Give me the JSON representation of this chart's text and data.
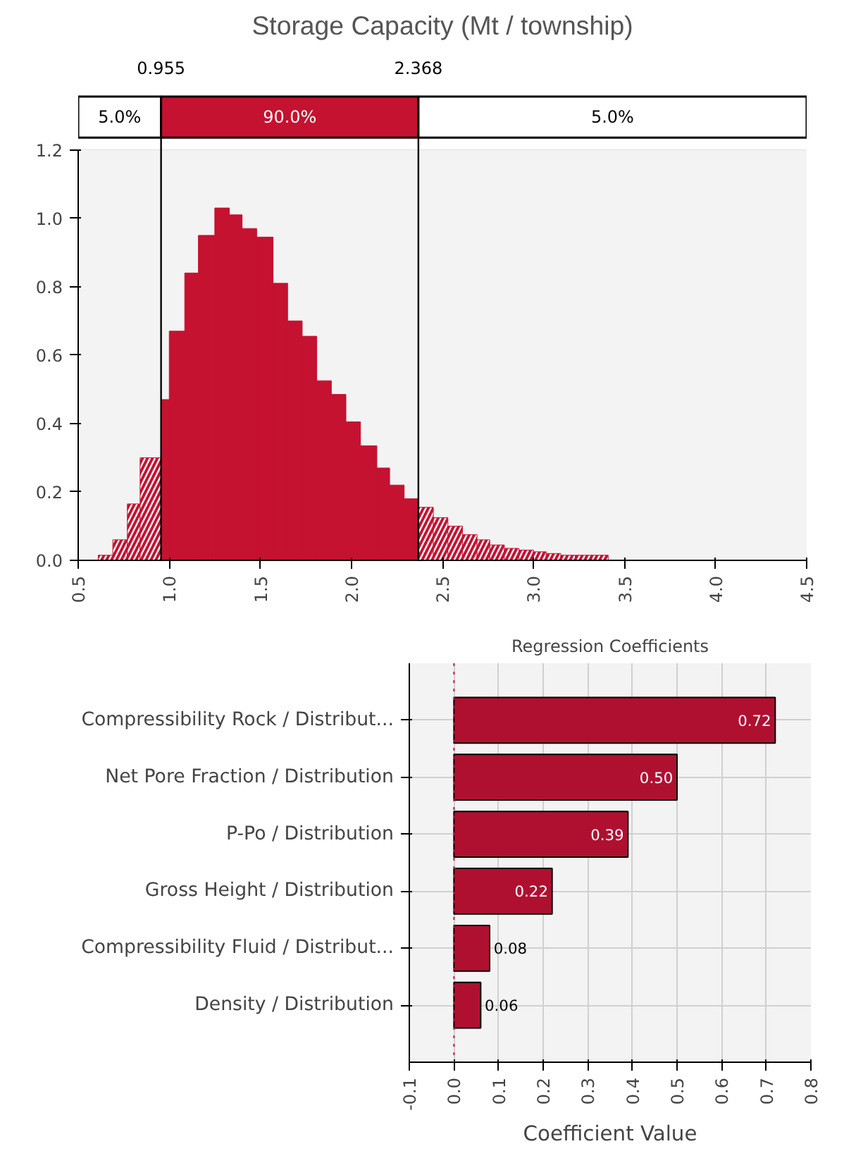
{
  "chart_data": [
    {
      "type": "histogram",
      "title": "Storage Capacity (Mt / township)",
      "color": "#c41230",
      "bins": [
        0.61,
        0.69,
        0.77,
        0.84,
        0.955,
        1.0,
        1.085,
        1.16,
        1.25,
        1.33,
        1.4,
        1.48,
        1.57,
        1.65,
        1.73,
        1.81,
        1.89,
        1.97,
        2.05,
        2.14,
        2.21,
        2.29,
        2.368,
        2.45,
        2.53,
        2.61,
        2.69,
        2.76,
        2.84,
        2.92,
        3.0,
        3.07,
        3.15,
        3.23,
        3.32,
        3.41
      ],
      "values": [
        0.015,
        0.06,
        0.165,
        0.3,
        0.47,
        0.67,
        0.84,
        0.95,
        1.03,
        1.01,
        0.97,
        0.945,
        0.81,
        0.7,
        0.655,
        0.525,
        0.485,
        0.405,
        0.335,
        0.27,
        0.22,
        0.18,
        0.155,
        0.125,
        0.1,
        0.075,
        0.06,
        0.045,
        0.035,
        0.03,
        0.025,
        0.02,
        0.015,
        0.015,
        0.015
      ],
      "xlim": [
        0.5,
        4.5
      ],
      "ylim": [
        0,
        1.2
      ],
      "xticks": [
        {
          "value": 0.5,
          "label": "0.5"
        },
        {
          "value": 1,
          "label": "1.0"
        },
        {
          "value": 1.5,
          "label": "1.5"
        },
        {
          "value": 2,
          "label": "2.0"
        },
        {
          "value": 2.5,
          "label": "2.5"
        },
        {
          "value": 3,
          "label": "3.0"
        },
        {
          "value": 3.5,
          "label": "3.5"
        },
        {
          "value": 4,
          "label": "4.0"
        },
        {
          "value": 4.5,
          "label": "4.5"
        }
      ],
      "yticks": [
        {
          "value": 0,
          "label": "0.0"
        },
        {
          "value": 0.2,
          "label": "0.2"
        },
        {
          "value": 0.4,
          "label": "0.4"
        },
        {
          "value": 0.6,
          "label": "0.6"
        },
        {
          "value": 0.8,
          "label": "0.8"
        },
        {
          "value": 1,
          "label": "1.0"
        },
        {
          "value": 1.2,
          "label": "1.2"
        }
      ],
      "grid": true,
      "ref_lines": [
        {
          "axis": "x",
          "value": 0.955,
          "label": "0.955",
          "color": "#000000"
        },
        {
          "axis": "x",
          "value": 2.368,
          "label": "2.368",
          "color": "#000000"
        }
      ],
      "annotations": [
        "5.0%",
        "90.0%",
        "5.0%"
      ]
    },
    {
      "type": "bar",
      "orientation": "horizontal",
      "title": "Regression Coefficients",
      "xlabel": "Coefficient Value",
      "color": "#b01030",
      "categories": [
        "Compressibility Rock / Distribut...",
        "Net Pore Fraction / Distribution",
        "P-Po / Distribution",
        "Gross Height / Distribution",
        "Compressibility Fluid / Distribut...",
        "Density / Distribution"
      ],
      "values": [
        0.72,
        0.5,
        0.39,
        0.22,
        0.08,
        0.06
      ],
      "value_labels": [
        "0.72",
        "0.50",
        "0.39",
        "0.22",
        "0.08",
        "0.06"
      ],
      "xlim": [
        -0.1,
        0.8
      ],
      "xticks": [
        {
          "value": -0.1,
          "label": "-0.1"
        },
        {
          "value": 0,
          "label": "0.0"
        },
        {
          "value": 0.1,
          "label": "0.1"
        },
        {
          "value": 0.2,
          "label": "0.2"
        },
        {
          "value": 0.3,
          "label": "0.3"
        },
        {
          "value": 0.4,
          "label": "0.4"
        },
        {
          "value": 0.5,
          "label": "0.5"
        },
        {
          "value": 0.6,
          "label": "0.6"
        },
        {
          "value": 0.7,
          "label": "0.7"
        },
        {
          "value": 0.8,
          "label": "0.8"
        }
      ],
      "grid": true,
      "ref_lines": [
        {
          "axis": "x",
          "value": 0,
          "color": "#dc143c",
          "line_style": "dotted"
        }
      ]
    }
  ]
}
